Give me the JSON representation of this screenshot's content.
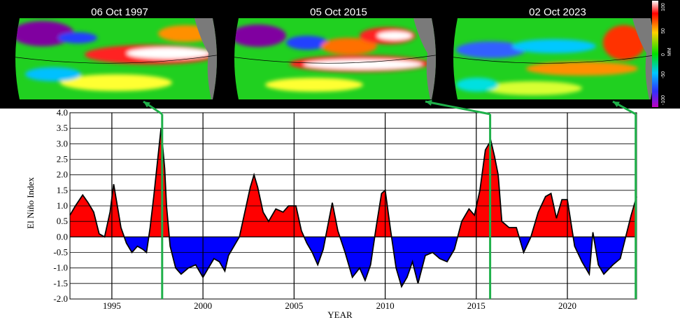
{
  "maps": [
    {
      "date": "06 Oct 1997",
      "year": 1997.76,
      "variant": "1997"
    },
    {
      "date": "05 Oct 2015",
      "year": 2015.76,
      "variant": "2015"
    },
    {
      "date": "02 Oct 2023",
      "year": 2023.75,
      "variant": "2023"
    }
  ],
  "colorbar": {
    "ticks": [
      "100",
      "50",
      "0",
      "-50",
      "-100"
    ],
    "unit": "MM"
  },
  "colors": {
    "positive": "#ff0000",
    "negative": "#0000ff",
    "connector": "#1fb04a",
    "grid": "#000000"
  },
  "chart_data": {
    "type": "area",
    "title": "",
    "xlabel": "YEAR",
    "ylabel": "El Niño Index",
    "xlim": [
      1992.7,
      2023.8
    ],
    "ylim": [
      -2.0,
      4.0
    ],
    "xticks": [
      1995,
      2000,
      2005,
      2010,
      2015,
      2020
    ],
    "yticks": [
      "4.0",
      "3.5",
      "3.0",
      "2.5",
      "2.0",
      "1.5",
      "1.0",
      "0.5",
      "0.0",
      "-0.5",
      "-1.0",
      "-1.5",
      "-2.0"
    ],
    "grid": true,
    "series": [
      {
        "fill_above_zero": "red",
        "fill_below_zero": "blue",
        "x": [
          1992.7,
          1993.0,
          1993.4,
          1993.7,
          1994.0,
          1994.3,
          1994.6,
          1994.9,
          1995.1,
          1995.5,
          1995.8,
          1996.1,
          1996.4,
          1996.7,
          1996.9,
          1997.1,
          1997.3,
          1997.5,
          1997.7,
          1997.9,
          1998.0,
          1998.2,
          1998.5,
          1998.8,
          1999.2,
          1999.6,
          2000.0,
          2000.3,
          2000.6,
          2000.9,
          2001.2,
          2001.4,
          2001.7,
          2002.0,
          2002.3,
          2002.6,
          2002.8,
          2003.0,
          2003.3,
          2003.6,
          2004.0,
          2004.4,
          2004.7,
          2005.1,
          2005.4,
          2005.7,
          2006.0,
          2006.3,
          2006.6,
          2006.9,
          2007.1,
          2007.4,
          2007.8,
          2008.2,
          2008.6,
          2008.9,
          2009.2,
          2009.5,
          2009.8,
          2010.0,
          2010.3,
          2010.6,
          2010.9,
          2011.2,
          2011.5,
          2011.8,
          2012.2,
          2012.6,
          2013.0,
          2013.4,
          2013.8,
          2014.2,
          2014.6,
          2014.9,
          2015.2,
          2015.5,
          2015.8,
          2016.0,
          2016.2,
          2016.4,
          2016.8,
          2017.2,
          2017.6,
          2018.0,
          2018.4,
          2018.8,
          2019.1,
          2019.4,
          2019.7,
          2020.0,
          2020.4,
          2020.8,
          2021.2,
          2021.4,
          2021.7,
          2022.0,
          2022.5,
          2022.9,
          2023.2,
          2023.5,
          2023.8
        ],
        "y": [
          0.7,
          1.0,
          1.35,
          1.1,
          0.8,
          0.1,
          0.0,
          0.8,
          1.7,
          0.3,
          -0.2,
          -0.5,
          -0.3,
          -0.4,
          -0.5,
          0.3,
          1.3,
          2.4,
          3.5,
          2.2,
          1.0,
          -0.3,
          -1.0,
          -1.2,
          -1.0,
          -0.9,
          -1.3,
          -1.0,
          -0.7,
          -0.8,
          -1.1,
          -0.6,
          -0.3,
          0.0,
          0.8,
          1.6,
          2.0,
          1.6,
          0.8,
          0.5,
          0.9,
          0.8,
          1.0,
          1.0,
          0.2,
          -0.2,
          -0.5,
          -0.9,
          -0.4,
          0.5,
          1.1,
          0.2,
          -0.5,
          -1.3,
          -1.0,
          -1.4,
          -0.9,
          0.3,
          1.4,
          1.5,
          0.2,
          -1.0,
          -1.6,
          -1.3,
          -0.8,
          -1.5,
          -0.6,
          -0.5,
          -0.7,
          -0.8,
          -0.4,
          0.5,
          0.9,
          0.7,
          1.5,
          2.8,
          3.1,
          2.6,
          2.0,
          0.5,
          0.3,
          0.3,
          -0.5,
          0.0,
          0.8,
          1.3,
          1.4,
          0.6,
          1.2,
          1.2,
          -0.3,
          -0.8,
          -1.2,
          0.15,
          -0.9,
          -1.2,
          -0.9,
          -0.7,
          0.0,
          0.7,
          1.3
        ]
      }
    ]
  }
}
